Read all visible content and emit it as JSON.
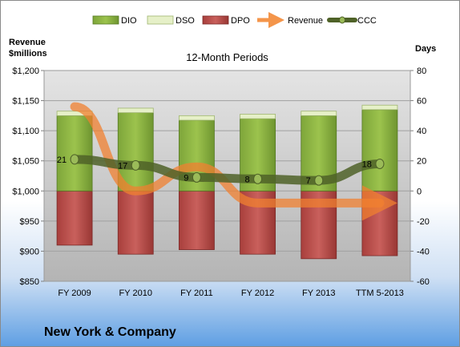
{
  "chart_data": {
    "type": "bar",
    "title": "12-Month Periods",
    "company": "New York & Company",
    "left_axis_label": "Revenue $millions",
    "left_axis_label_lines": [
      "Revenue",
      "$millions"
    ],
    "right_axis_label": "Days",
    "categories": [
      "FY 2009",
      "FY 2010",
      "FY 2011",
      "FY 2012",
      "FY 2013",
      "TTM 5-2013"
    ],
    "left_axis": {
      "ylim": [
        850,
        1200
      ],
      "ticks": [
        850,
        900,
        950,
        1000,
        1050,
        1100,
        1150,
        1200
      ],
      "tick_labels": [
        "$850",
        "$900",
        "$950",
        "$1,000",
        "$1,050",
        "$1,100",
        "$1,150",
        "$1,200"
      ]
    },
    "right_axis": {
      "ylim": [
        -60,
        80
      ],
      "ticks": [
        -60,
        -40,
        -20,
        0,
        20,
        40,
        60,
        80
      ],
      "tick_labels": [
        "-60",
        "-40",
        "-20",
        "0",
        "20",
        "40",
        "60",
        "80"
      ]
    },
    "grid": true,
    "legend_position": "top",
    "series": [
      {
        "name": "DIO",
        "type": "stacked_bar",
        "axis": "right",
        "color": "#8cb43c",
        "values": [
          50,
          52,
          47,
          48,
          50,
          54
        ]
      },
      {
        "name": "DSO",
        "type": "stacked_bar",
        "axis": "right",
        "color": "#e6f0c8",
        "values": [
          3,
          3,
          3,
          3,
          3,
          3
        ]
      },
      {
        "name": "DPO",
        "type": "stacked_bar",
        "axis": "right",
        "color": "#c0504d",
        "values": [
          -36,
          -42,
          -39,
          -42,
          -45,
          -43
        ]
      },
      {
        "name": "Revenue",
        "type": "line",
        "axis": "left",
        "color": "#f4954a",
        "values": [
          1140,
          1000,
          1040,
          980,
          980,
          980
        ]
      },
      {
        "name": "CCC",
        "type": "line",
        "axis": "right",
        "color": "#4f6228",
        "values": [
          21,
          17,
          9,
          8,
          7,
          18
        ],
        "labels": [
          "21",
          "17",
          "9",
          "8",
          "7",
          "18"
        ]
      }
    ]
  }
}
